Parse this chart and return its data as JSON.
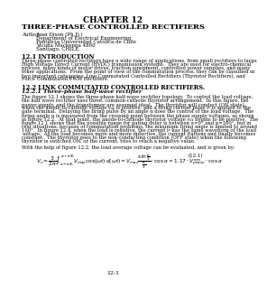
{
  "chapter": "CHAPTER 12",
  "title": "THREE-PHASE CONTROLLED RECTIFIERS",
  "author_label": "Author :",
  "author_name": "Juan Dixon (Ph.D.)",
  "author_dept": "Department of Electrical Engineering",
  "author_univ": "Pontificia Universidad Católica de Chile",
  "author_addr": "Vicuña Mackenna 4860",
  "author_city": "Santiago, CHILE.",
  "section1_title": "12.1 INTRODUCTION",
  "section2_title": "12.2 LINK COMMUTATED CONTROLLED RECTIFIERS.",
  "section2_sub": "12.2.1 Three-phase half-wave rectifier",
  "section2_help": "With the help of figure 12.2, the load average voltage can be evaluated, and is given by:",
  "eq_number": "(12.1)",
  "page_number": "12-1",
  "bg_color": "#ffffff",
  "text_color": "#000000",
  "body1_lines": [
    "Three-phase controlled rectifiers have a wide range of applications, from small rectifiers to large",
    "High Voltage Direct Current (HVDC) transmission systems.  They are used for electro-chemical",
    "process, many kinds of motor drives, traction equipment, controlled power supplies, and many",
    "other applications.  From the point of view of the commutation process, they can be classified in",
    "two important categories: Line Commutated Controlled Rectifiers (Thyristor Rectifiers), and",
    "Force Commutated PWM Rectifiers."
  ],
  "body2_lines": [
    "The figure 12.1 shows the three-phase half-wave rectifier topology.  To control the load voltage,",
    "the half wave rectifier uses three, common-cathode thyristor arrangement.  In this figure, the",
    "power supply, and the transformer are assumed ideal.  The thyristor will conduct (ON state),",
    "when the anode-to-cathode voltage vₐₖ is positive, and a firing current pulse iᵍ is applied to the",
    "gate terminal.  Delaying the firing pulse by an angle α does the control of the load voltage.  The",
    "firing angle α is measured from the crossing point between the phase supply voltages, as shown",
    "in figure 12.2.  At that point, the anode-to-cathode thyristor voltage vₐₖ begins to be positive.  The",
    "figure 12.1 shows that the possible range for gating delay is between α=0° and α=180°, but in",
    "real situations, because of commutation problems, the maximum firing angle is limited to around",
    "160°.  In figure 12.4, when the load is resistive, the current iᵍ has the same waveform of the load",
    "voltage.  As the load becomes more and more inductive, the current flattens and finally becomes",
    "constant.  The thyristor goes to the non-conducting condition (OFF state) when the following",
    "thyristor is switched ON, or the current, tries to reach a negative value."
  ]
}
